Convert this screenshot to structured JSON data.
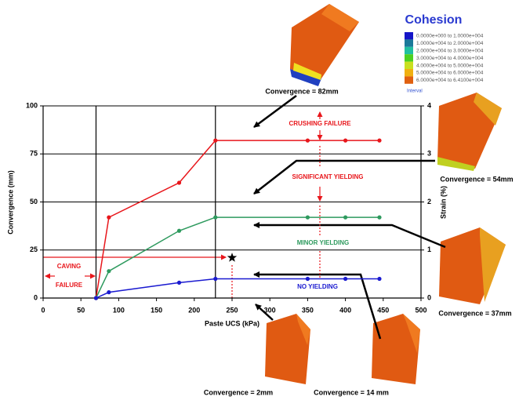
{
  "chart_data": {
    "type": "line",
    "x_label": "Paste UCS (kPa)",
    "y_label": "Convergence (mm)",
    "y2_label": "Strain (%)",
    "x": [
      70,
      87,
      180,
      228,
      350,
      400,
      445
    ],
    "series": [
      {
        "color": "#e8161b",
        "values": [
          0,
          42,
          60,
          82,
          82,
          82,
          82
        ]
      },
      {
        "color": "#2e9a5e",
        "values": [
          0,
          14,
          35,
          42,
          42,
          42,
          42
        ]
      },
      {
        "color": "#1a1ad0",
        "values": [
          0,
          3,
          8,
          10,
          10,
          10,
          10
        ]
      }
    ],
    "xlim": [
      0,
      500
    ],
    "xticks": [
      0,
      50,
      100,
      150,
      200,
      250,
      300,
      350,
      400,
      450,
      500
    ],
    "ylim": [
      0,
      100
    ],
    "yticks": [
      0,
      25,
      50,
      75,
      100
    ],
    "y2lim": [
      0,
      4
    ],
    "y2ticks": [
      0,
      1,
      2,
      3,
      4
    ],
    "grid": true,
    "reference_x": [
      70,
      228
    ],
    "marker_point": {
      "x": 250,
      "y": 21
    },
    "annotations": [
      {
        "text": "CRUSHING FAILURE",
        "color": "#e8161b"
      },
      {
        "text": "SIGNIFICANT YIELDING",
        "color": "#e8161b"
      },
      {
        "text": "MINOR YIELDING",
        "color": "#2e9a5e"
      },
      {
        "text": "NO YIELDING",
        "color": "#1a1ad0"
      },
      {
        "text": "CAVING",
        "color": "#e8161b"
      },
      {
        "text": "FAILURE",
        "color": "#e8161b"
      }
    ]
  },
  "figure": {
    "captions": [
      "Convergence = 82mm",
      "Convergence = 54mm",
      "Convergence = 37mm",
      "Convergence = 2mm",
      "Convergence = 14 mm"
    ],
    "legend": {
      "title": "Cohesion",
      "note": "Interval",
      "entries": [
        {
          "label": "0.0000e+000 to 1.0000e+004",
          "color": "#1515c8"
        },
        {
          "label": "1.0000e+004 to 2.0000e+004",
          "color": "#1a7a9a"
        },
        {
          "label": "2.0000e+004 to 3.0000e+004",
          "color": "#20c0a0"
        },
        {
          "label": "3.0000e+004 to 4.0000e+004",
          "color": "#4cd020"
        },
        {
          "label": "4.0000e+004 to 5.0000e+004",
          "color": "#c8e020"
        },
        {
          "label": "5.0000e+004 to 6.0000e+004",
          "color": "#f0b010"
        },
        {
          "label": "6.0000e+004 to 6.4100e+004",
          "color": "#e06010"
        }
      ]
    }
  }
}
